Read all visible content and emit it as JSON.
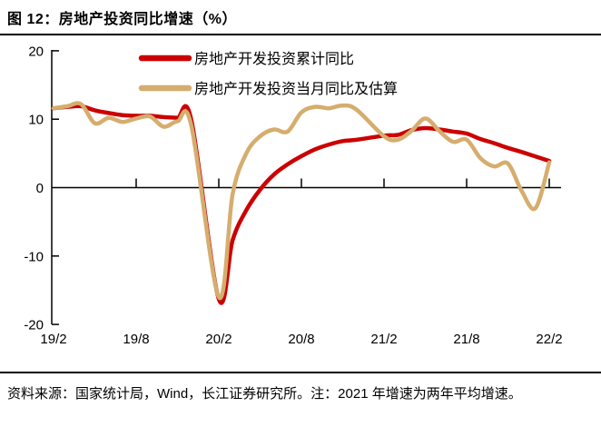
{
  "header": {
    "title": "图 12：房地产投资同比增速（%）"
  },
  "footer": {
    "source_note": "资料来源：国家统计局，Wind，长江证券研究所。注：2021 年增速为两年平均增速。"
  },
  "colors": {
    "cumulative_red": "#CC0000",
    "monthly_tan": "#D5AD6E",
    "axis_black": "#000000"
  },
  "chart_data": {
    "type": "line",
    "title": "图 12：房地产投资同比增速（%）",
    "xlabel": "",
    "ylabel": "",
    "ylim": [
      -20,
      20
    ],
    "yticks": [
      20,
      10,
      0,
      -10,
      -20
    ],
    "xticks": [
      "19/2",
      "19/8",
      "20/2",
      "20/8",
      "21/2",
      "21/8",
      "22/2"
    ],
    "grid": false,
    "legend_position": "top-center",
    "series": [
      {
        "name": "房地产开发投资累计同比",
        "color": "#CC0000",
        "points": [
          [
            "19/2",
            11.6
          ],
          [
            "19/3",
            11.8
          ],
          [
            "19/4",
            11.9
          ],
          [
            "19/5",
            11.3
          ],
          [
            "19/6",
            10.9
          ],
          [
            "19/7",
            10.6
          ],
          [
            "19/8",
            10.5
          ],
          [
            "19/9",
            10.5
          ],
          [
            "19/10",
            10.3
          ],
          [
            "19/11",
            10.2
          ],
          [
            "19/12",
            9.9
          ],
          [
            "20/2",
            -16.3
          ],
          [
            "20/3",
            -7.7
          ],
          [
            "20/4",
            -3.3
          ],
          [
            "20/5",
            -0.3
          ],
          [
            "20/6",
            1.9
          ],
          [
            "20/7",
            3.4
          ],
          [
            "20/8",
            4.6
          ],
          [
            "20/9",
            5.6
          ],
          [
            "20/10",
            6.3
          ],
          [
            "20/11",
            6.8
          ],
          [
            "20/12",
            7.0
          ],
          [
            "21/2",
            7.6
          ],
          [
            "21/3",
            7.7
          ],
          [
            "21/4",
            8.4
          ],
          [
            "21/5",
            8.7
          ],
          [
            "21/6",
            8.5
          ],
          [
            "21/7",
            8.2
          ],
          [
            "21/8",
            7.9
          ],
          [
            "21/9",
            7.1
          ],
          [
            "21/10",
            6.5
          ],
          [
            "21/11",
            5.8
          ],
          [
            "21/12",
            5.2
          ],
          [
            "22/2",
            3.9
          ]
        ]
      },
      {
        "name": "房地产开发投资当月同比及估算",
        "color": "#D5AD6E",
        "points": [
          [
            "19/2",
            11.6
          ],
          [
            "19/3",
            11.9
          ],
          [
            "19/4",
            12.2
          ],
          [
            "19/5",
            9.4
          ],
          [
            "19/6",
            10.2
          ],
          [
            "19/7",
            9.6
          ],
          [
            "19/8",
            10.1
          ],
          [
            "19/9",
            10.4
          ],
          [
            "19/10",
            8.9
          ],
          [
            "19/11",
            9.7
          ],
          [
            "19/12",
            9.1
          ],
          [
            "20/2",
            -16.0
          ],
          [
            "20/3",
            -1.0
          ],
          [
            "20/4",
            5.0
          ],
          [
            "20/5",
            7.5
          ],
          [
            "20/6",
            8.5
          ],
          [
            "20/7",
            8.2
          ],
          [
            "20/8",
            11.0
          ],
          [
            "20/9",
            11.8
          ],
          [
            "20/10",
            11.6
          ],
          [
            "20/11",
            12.0
          ],
          [
            "20/12",
            11.4
          ],
          [
            "21/2",
            7.5
          ],
          [
            "21/3",
            7.0
          ],
          [
            "21/4",
            8.3
          ],
          [
            "21/5",
            10.1
          ],
          [
            "21/6",
            8.3
          ],
          [
            "21/7",
            6.7
          ],
          [
            "21/8",
            7.0
          ],
          [
            "21/9",
            4.3
          ],
          [
            "21/10",
            3.1
          ],
          [
            "21/11",
            3.5
          ],
          [
            "21/12",
            -0.5
          ],
          [
            "22/1",
            -3.0
          ],
          [
            "22/2",
            3.7
          ]
        ]
      }
    ]
  }
}
